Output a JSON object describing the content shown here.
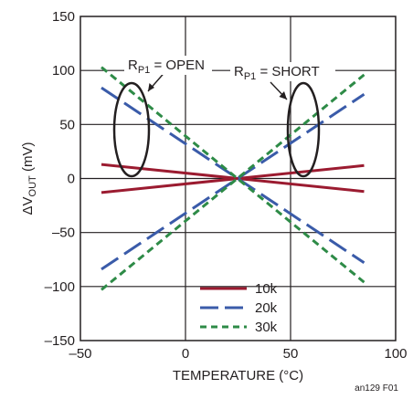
{
  "chart_data": {
    "type": "line",
    "title": "",
    "xlabel": "TEMPERATURE (°C)",
    "ylabel": {
      "prefix": "ΔV",
      "sub": "OUT",
      "suffix": " (mV)"
    },
    "xlim": [
      -50,
      100
    ],
    "ylim": [
      -150,
      150
    ],
    "xticks": [
      -50,
      0,
      50,
      100
    ],
    "xtick_labels": [
      "–50",
      "0",
      "50",
      "100"
    ],
    "yticks": [
      -150,
      -100,
      -50,
      0,
      50,
      100,
      150
    ],
    "ytick_labels": [
      "–150",
      "–100",
      "–50",
      "0",
      "50",
      "100",
      "150"
    ],
    "grid": true,
    "legend": "bottom-center",
    "series": [
      {
        "name": "10k",
        "color": "#9b1b30",
        "dash": "solid",
        "x": [
          -40,
          85
        ],
        "y": [
          13,
          -12
        ]
      },
      {
        "name": "10k",
        "color": "#9b1b30",
        "dash": "solid",
        "x": [
          -40,
          85
        ],
        "y": [
          -13,
          12
        ],
        "legend": false
      },
      {
        "name": "20k",
        "color": "#3a5ba9",
        "dash": "long-dash",
        "x": [
          -40,
          85
        ],
        "y": [
          84,
          -78
        ]
      },
      {
        "name": "20k",
        "color": "#3a5ba9",
        "dash": "long-dash",
        "x": [
          -40,
          85
        ],
        "y": [
          -84,
          78
        ],
        "legend": false
      },
      {
        "name": "30k",
        "color": "#2e8b47",
        "dash": "short-dash",
        "x": [
          -40,
          85
        ],
        "y": [
          103,
          -96
        ]
      },
      {
        "name": "30k",
        "color": "#2e8b47",
        "dash": "short-dash",
        "x": [
          -40,
          85
        ],
        "y": [
          -103,
          96
        ],
        "legend": false
      }
    ],
    "annotations": [
      {
        "prefix": "R",
        "sub": "P1",
        "suffix": " = OPEN"
      },
      {
        "prefix": "R",
        "sub": "P1",
        "suffix": " = SHORT"
      }
    ],
    "figure_id": "an129 F01"
  }
}
